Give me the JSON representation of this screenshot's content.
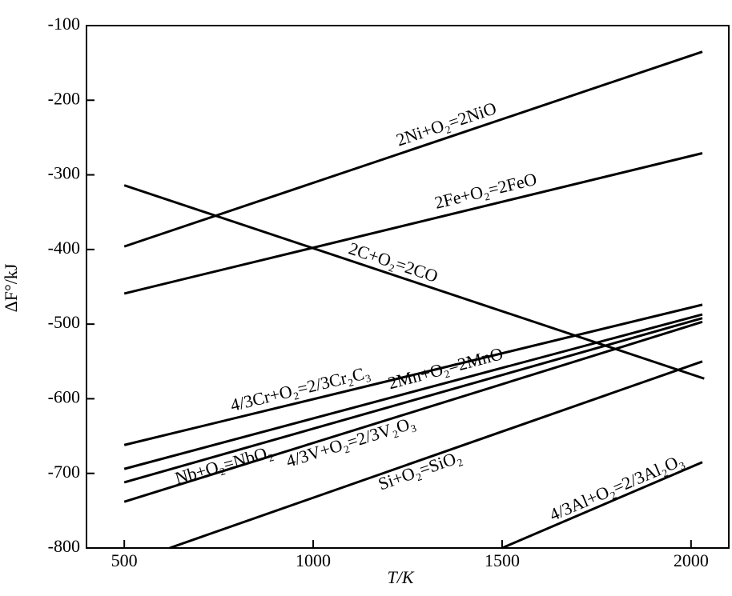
{
  "chart_data": {
    "type": "line",
    "xlabel": "T/K",
    "ylabel": "ΔF°/kJ",
    "xlim": [
      400,
      2100
    ],
    "ylim": [
      -800,
      -100
    ],
    "xticks": [
      500,
      1000,
      1500,
      2000
    ],
    "yticks": [
      -800,
      -700,
      -600,
      -500,
      -400,
      -300,
      -200,
      -100
    ],
    "color": "#000000",
    "series": [
      {
        "name": "2Ni+O₂=2NiO",
        "x": [
          500,
          2030
        ],
        "values": [
          -396,
          -135
        ]
      },
      {
        "name": "2Fe+O₂=2FeO",
        "x": [
          500,
          2030
        ],
        "values": [
          -459,
          -271
        ]
      },
      {
        "name": "2C+O₂=2CO",
        "x": [
          500,
          2035
        ],
        "values": [
          -314,
          -573
        ]
      },
      {
        "name": "4/3Cr+O₂=2/3Cr₂C₃",
        "x": [
          500,
          2030
        ],
        "values": [
          -662,
          -474
        ]
      },
      {
        "name": "2Mn+O₂=2MnO",
        "x": [
          500,
          2030
        ],
        "values": [
          -694,
          -487
        ]
      },
      {
        "name": "Nb+O₂=NbO₂",
        "x": [
          500,
          2030
        ],
        "values": [
          -712,
          -492
        ]
      },
      {
        "name": "4/3V+O₂=2/3V₂O₃",
        "x": [
          500,
          2030
        ],
        "values": [
          -738,
          -497
        ]
      },
      {
        "name": "Si+O₂=SiO₂",
        "x": [
          620,
          2030
        ],
        "values": [
          -800,
          -550
        ]
      },
      {
        "name": "4/3Al+O₂=2/3Al₂O₃",
        "x": [
          1500,
          2030
        ],
        "values": [
          -800,
          -685
        ]
      }
    ]
  }
}
